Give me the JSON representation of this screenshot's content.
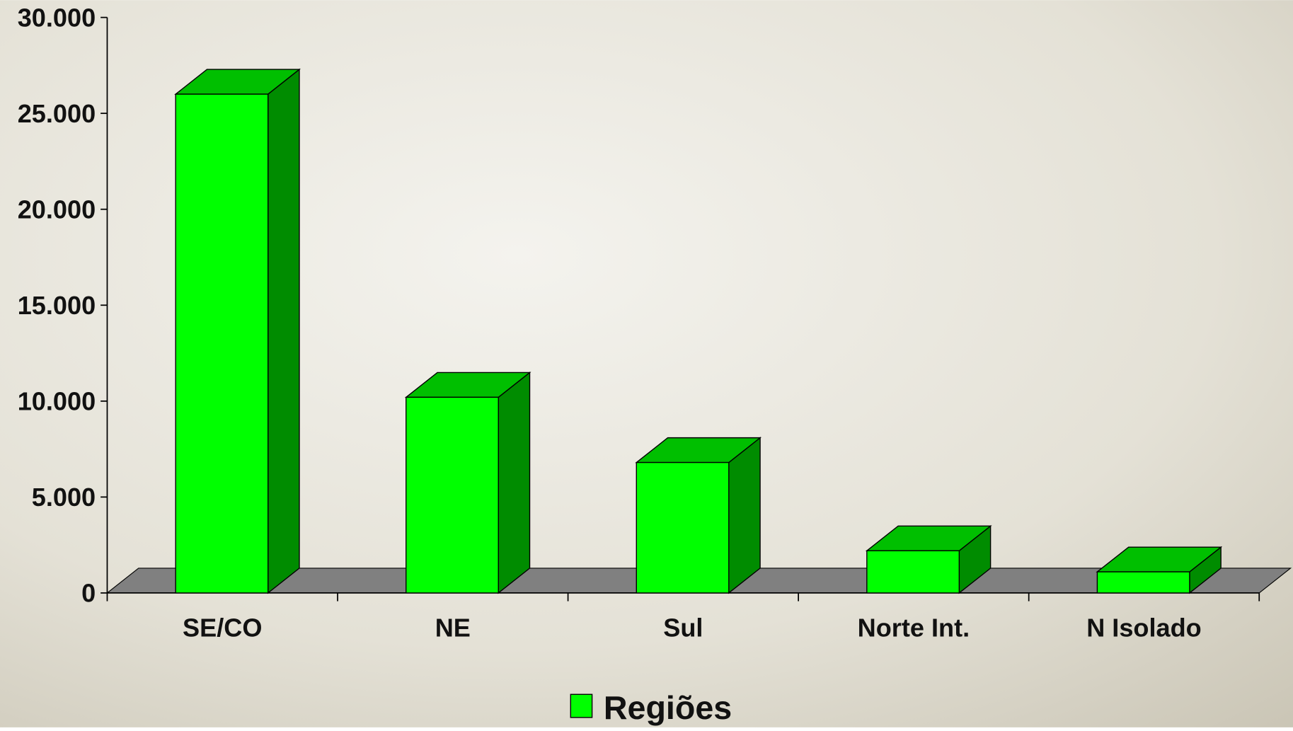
{
  "chart_data": {
    "type": "bar3d",
    "categories": [
      "SE/CO",
      "NE",
      "Sul",
      "Norte Int.",
      "N Isolado"
    ],
    "series": [
      {
        "name": "Regiões",
        "color": "#00ff00",
        "values": [
          26000,
          10200,
          6800,
          2200,
          1100
        ]
      }
    ],
    "ylim": [
      0,
      30000
    ],
    "yticks": [
      0,
      {
        "value": 5000,
        "label": "5.000"
      },
      {
        "value": 10000,
        "label": "10.000"
      },
      {
        "value": 15000,
        "label": "15.000"
      },
      {
        "value": 20000,
        "label": "20.000"
      },
      {
        "value": 25000,
        "label": "25.000"
      },
      {
        "value": 30000,
        "label": "30.000"
      }
    ],
    "legend": "bottom"
  }
}
